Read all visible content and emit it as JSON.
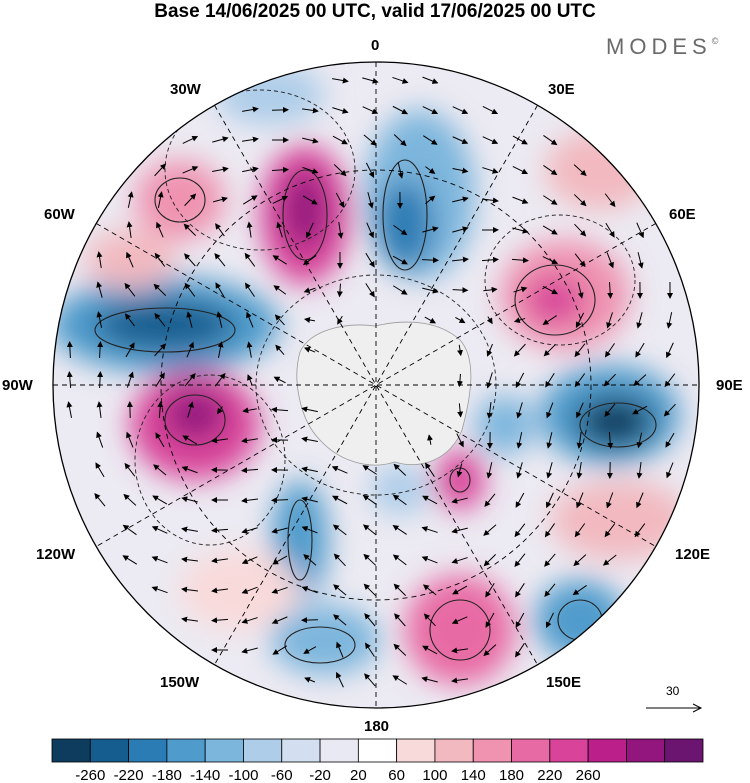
{
  "title": "Base 14/06/2025 00 UTC, valid 17/06/2025 00 UTC",
  "brand": {
    "name": "MODES",
    "mark": "©"
  },
  "longitude_labels": {
    "lon_0": "0",
    "lon_30e": "30E",
    "lon_60e": "60E",
    "lon_90e": "90E",
    "lon_120e": "120E",
    "lon_150e": "150E",
    "lon_180": "180",
    "lon_150w": "150W",
    "lon_120w": "120W",
    "lon_90w": "90W",
    "lon_60w": "60W",
    "lon_30w": "30W"
  },
  "wind_reference": {
    "value": "30"
  },
  "colorbar": {
    "ticks": [
      "-260",
      "-220",
      "-180",
      "-140",
      "-100",
      "-60",
      "-20",
      "20",
      "60",
      "100",
      "140",
      "180",
      "220",
      "260"
    ],
    "colors": [
      "#0d3c5e",
      "#155d8f",
      "#2b7cb4",
      "#4f9bcc",
      "#7db6dd",
      "#adcde9",
      "#d3dff0",
      "#e9e9f3",
      "#ffffff",
      "#f9dada",
      "#f2b9c0",
      "#ef93b0",
      "#e86aa4",
      "#d9449a",
      "#ba1f8a",
      "#93157e",
      "#6b1470"
    ]
  },
  "map": {
    "projection": "south-polar-stereographic",
    "field_colors": {
      "continent": "#efefef",
      "coast": "#9a9a9a"
    }
  }
}
